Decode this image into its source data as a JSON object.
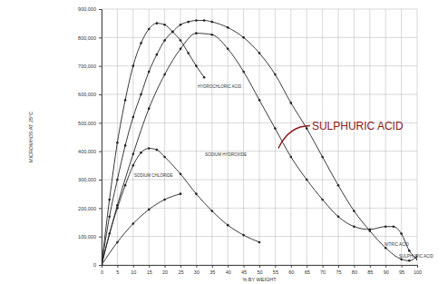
{
  "chart_data": {
    "type": "line",
    "x_label": "% BY WEIGHT",
    "y_label": "MICROMHOS AT 25°C",
    "xlim": [
      0,
      100
    ],
    "xticks": [
      0,
      5,
      10,
      15,
      20,
      25,
      30,
      35,
      40,
      45,
      50,
      55,
      60,
      65,
      70,
      75,
      80,
      85,
      90,
      95,
      100
    ],
    "ylim": [
      0,
      900000
    ],
    "yticks": [
      0,
      {
        "value": 100000,
        "label": "100,000"
      },
      {
        "value": 200000,
        "label": "200,000"
      },
      {
        "value": 300000,
        "label": "300,000"
      },
      {
        "value": 400000,
        "label": "400,000"
      },
      {
        "value": 500000,
        "label": "500,000"
      },
      {
        "value": 600000,
        "label": "600,000"
      },
      {
        "value": 700000,
        "label": "700,000"
      },
      {
        "value": 800000,
        "label": "800,000"
      },
      {
        "value": 900000,
        "label": "900,000"
      }
    ],
    "grid": true,
    "marker": "circle",
    "series": [
      {
        "name": "HYDROCHLORIC ACID",
        "color": "#222222",
        "x": [
          0,
          2.5,
          5,
          7.5,
          10,
          12.5,
          15,
          17.5,
          20,
          22.5,
          25,
          27.5,
          30,
          32.5
        ],
        "values": [
          0,
          230000,
          430000,
          580000,
          700000,
          780000,
          830000,
          850000,
          845000,
          820000,
          790000,
          745000,
          700000,
          660000
        ]
      },
      {
        "name": "NITRIC ACID",
        "color": "#222222",
        "x": [
          0,
          2.5,
          5,
          7.5,
          10,
          12.5,
          15,
          17.5,
          20,
          22.5,
          25,
          27.5,
          30,
          32.5,
          35,
          40,
          45,
          50,
          55,
          60,
          65,
          70,
          75,
          80,
          85,
          90,
          95,
          97.5,
          100
        ],
        "values": [
          0,
          170000,
          300000,
          420000,
          520000,
          600000,
          680000,
          740000,
          790000,
          820000,
          845000,
          855000,
          860000,
          860000,
          855000,
          835000,
          800000,
          745000,
          670000,
          570000,
          480000,
          380000,
          280000,
          190000,
          120000,
          60000,
          20000,
          15000,
          30000
        ]
      },
      {
        "name": "SULPHURIC ACID",
        "color": "#222222",
        "x": [
          0,
          5,
          10,
          15,
          20,
          25,
          30,
          35,
          40,
          45,
          50,
          55,
          60,
          65,
          70,
          75,
          80,
          85,
          90,
          92.5,
          95,
          97.5,
          100
        ],
        "values": [
          0,
          210000,
          390000,
          550000,
          670000,
          760000,
          815000,
          810000,
          760000,
          680000,
          580000,
          480000,
          380000,
          300000,
          230000,
          170000,
          135000,
          125000,
          135000,
          135000,
          110000,
          50000,
          20000
        ]
      },
      {
        "name": "SODIUM HYDROXIDE",
        "color": "#222222",
        "x": [
          0,
          2.5,
          5,
          7.5,
          10,
          12.5,
          15,
          17.5,
          20,
          25,
          30,
          35,
          40,
          45,
          50
        ],
        "values": [
          0,
          110000,
          200000,
          280000,
          350000,
          395000,
          410000,
          405000,
          380000,
          320000,
          250000,
          190000,
          140000,
          105000,
          80000
        ]
      },
      {
        "name": "SODIUM CHLORIDE",
        "color": "#222222",
        "x": [
          0,
          5,
          10,
          15,
          20,
          25
        ],
        "values": [
          0,
          80000,
          145000,
          195000,
          230000,
          250000
        ]
      }
    ],
    "annotations": [
      {
        "text": "SULPHURIC ACID",
        "x": 56,
        "y": 410000,
        "color": "#8b1a1a"
      }
    ]
  }
}
